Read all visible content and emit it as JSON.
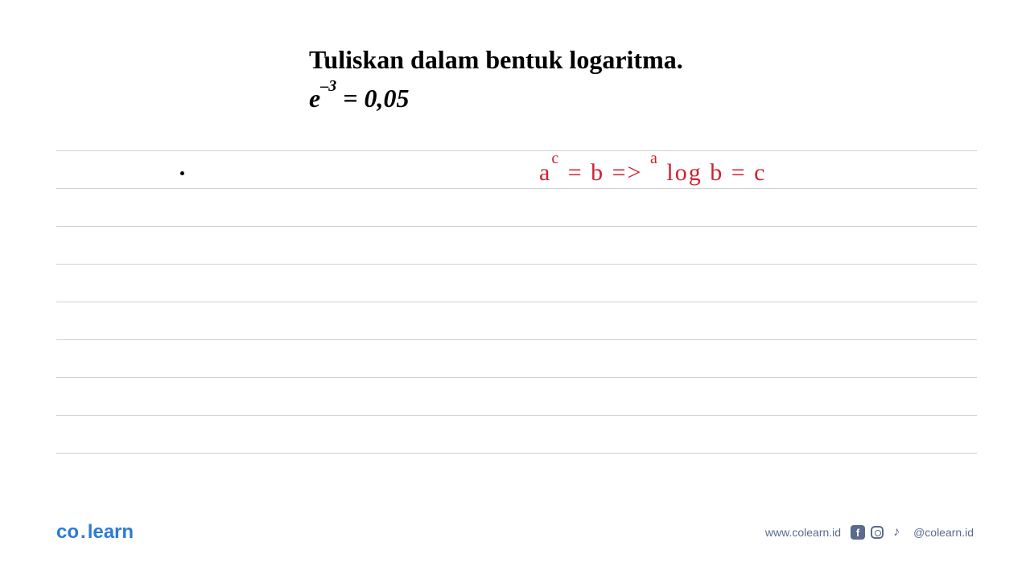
{
  "problem": {
    "instruction": "Tuliskan dalam bentuk logaritma.",
    "equation_base": "e",
    "equation_exponent": "–3",
    "equation_equals": " = 0,05"
  },
  "handwriting": {
    "formula_lhs_base": "a",
    "formula_lhs_exp": "c",
    "formula_lhs_rest": " = b   =>   ",
    "formula_rhs_pre": "a",
    "formula_rhs_log": " log b = c",
    "color": "#d02030"
  },
  "ruled_lines": {
    "count": 9,
    "line_color": "#d0d0d0"
  },
  "footer": {
    "logo_part1": "co",
    "logo_separator": ".",
    "logo_part2": "learn",
    "website": "www.colearn.id",
    "handle": "@colearn.id"
  },
  "colors": {
    "text": "#000000",
    "handwriting": "#d02030",
    "logo": "#2b7bd6",
    "footer_text": "#5a6b8c",
    "background": "#ffffff"
  }
}
